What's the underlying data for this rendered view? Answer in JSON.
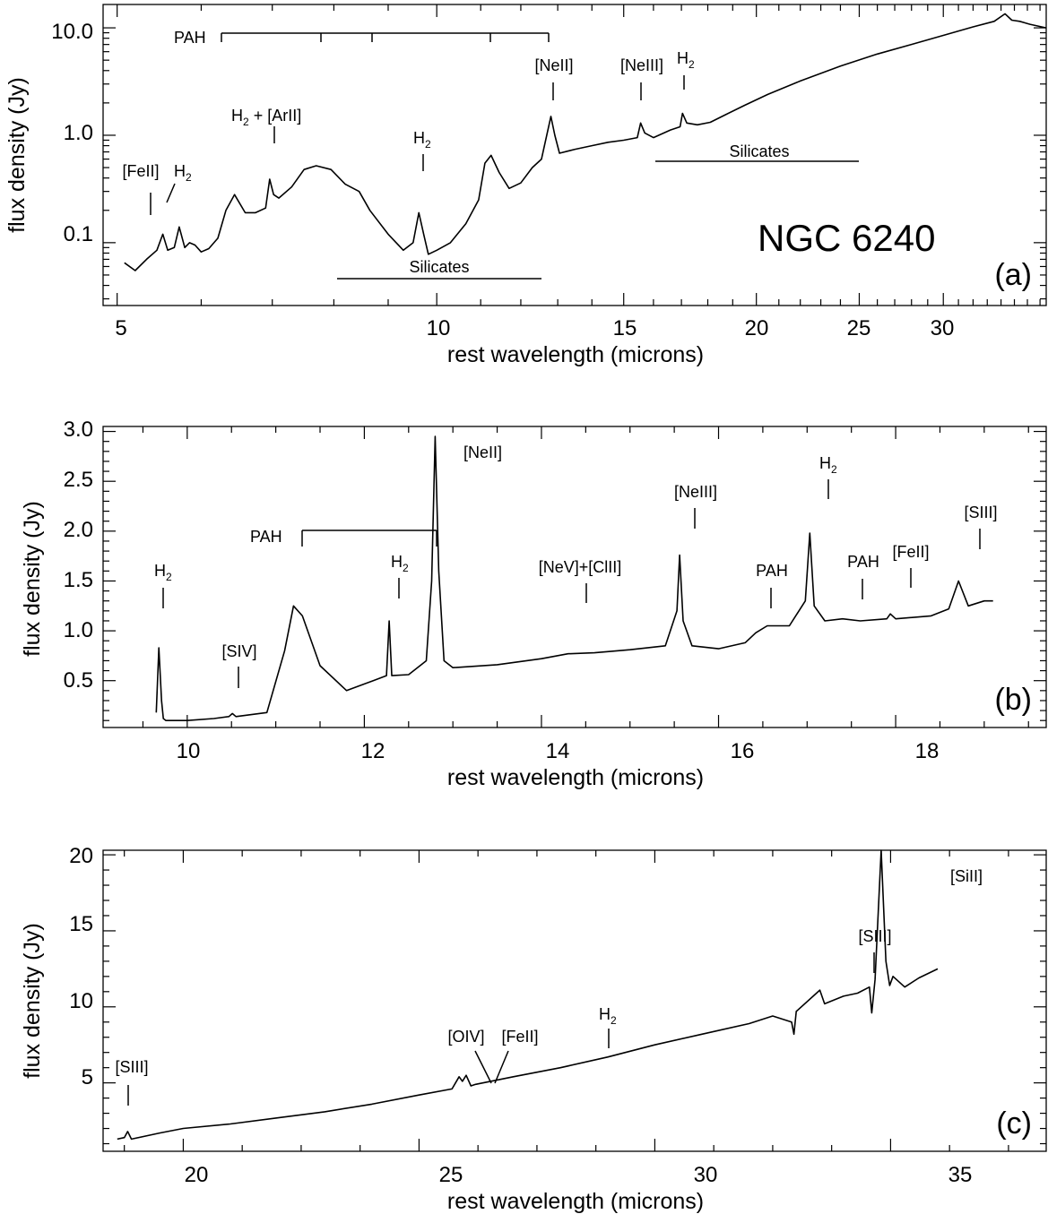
{
  "chart_data": [
    {
      "type": "line",
      "panel_label": "(a)",
      "object_label": "NGC 6240",
      "xlabel": "rest wavelength (microns)",
      "ylabel": "flux density (Jy)",
      "xscale": "log",
      "yscale": "log",
      "xlim": [
        4.85,
        37.5
      ],
      "ylim": [
        0.026,
        16.5
      ],
      "xticks": [
        5,
        10,
        15,
        20,
        25,
        30
      ],
      "xtick_labels": [
        "5",
        "10",
        "15",
        "20",
        "25",
        "30"
      ],
      "yticks": [
        0.1,
        1.0,
        10.0
      ],
      "ytick_labels": [
        "0.1",
        "1.0",
        "10.0"
      ],
      "series": [
        {
          "x": [
            5.08,
            5.2,
            5.33,
            5.45,
            5.52,
            5.58,
            5.66,
            5.72,
            5.79,
            5.85,
            5.92,
            6.0,
            6.1,
            6.22,
            6.33,
            6.45,
            6.6,
            6.75,
            6.9,
            6.96,
            7.02,
            7.1,
            7.3,
            7.5,
            7.7,
            7.95,
            8.2,
            8.45,
            8.65,
            9.0,
            9.3,
            9.5,
            9.62,
            9.72,
            9.82,
            10.0,
            10.3,
            10.65,
            10.95,
            11.1,
            11.25,
            11.45,
            11.7,
            12.0,
            12.3,
            12.55,
            12.81,
            12.92,
            13.05,
            13.5,
            14.0,
            14.5,
            15.0,
            15.45,
            15.56,
            15.7,
            16.0,
            16.6,
            16.95,
            17.04,
            17.2,
            17.6,
            18.1,
            18.7,
            19.5,
            20.5,
            22.0,
            24.0,
            26.0,
            28.0,
            30.0,
            32.0,
            33.5,
            34.3,
            34.8,
            35.4,
            36.2,
            37.5
          ],
          "y": [
            0.065,
            0.055,
            0.07,
            0.085,
            0.12,
            0.085,
            0.09,
            0.14,
            0.09,
            0.1,
            0.095,
            0.082,
            0.088,
            0.11,
            0.2,
            0.28,
            0.19,
            0.19,
            0.21,
            0.39,
            0.28,
            0.26,
            0.33,
            0.48,
            0.52,
            0.48,
            0.35,
            0.3,
            0.2,
            0.12,
            0.085,
            0.1,
            0.19,
            0.12,
            0.078,
            0.085,
            0.1,
            0.15,
            0.25,
            0.55,
            0.65,
            0.45,
            0.32,
            0.36,
            0.5,
            0.6,
            1.5,
            1.0,
            0.68,
            0.74,
            0.8,
            0.86,
            0.9,
            0.95,
            1.3,
            1.05,
            0.95,
            1.12,
            1.2,
            1.6,
            1.3,
            1.25,
            1.32,
            1.55,
            1.9,
            2.4,
            3.2,
            4.4,
            5.7,
            7.0,
            8.5,
            10.2,
            11.5,
            13.5,
            11.8,
            11.5,
            10.8,
            10.0
          ]
        }
      ],
      "annotations": [
        "[FeII]",
        "H₂",
        "H₂ + [ArII]",
        "PAH",
        "H₂",
        "[NeII]",
        "[NeIII]",
        "H₂",
        "Silicates",
        "Silicates"
      ]
    },
    {
      "type": "line",
      "panel_label": "(b)",
      "xlabel": "rest wavelength (microns)",
      "ylabel": "flux density (Jy)",
      "xlim": [
        9.05,
        19.7
      ],
      "ylim": [
        0.03,
        3.05
      ],
      "xticks": [
        10,
        12,
        14,
        16,
        18
      ],
      "xtick_labels": [
        "10",
        "12",
        "14",
        "16",
        "18"
      ],
      "yticks": [
        0.5,
        1.0,
        1.5,
        2.0,
        2.5,
        3.0
      ],
      "ytick_labels": [
        "0.5",
        "1.0",
        "1.5",
        "2.0",
        "2.5",
        "3.0"
      ],
      "series": [
        {
          "x": [
            9.65,
            9.68,
            9.71,
            9.73,
            9.76,
            10.0,
            10.3,
            10.47,
            10.51,
            10.55,
            10.9,
            11.1,
            11.2,
            11.3,
            11.5,
            11.8,
            12.1,
            12.25,
            12.28,
            12.31,
            12.5,
            12.7,
            12.76,
            12.8,
            12.84,
            12.9,
            13.0,
            13.5,
            14.0,
            14.3,
            14.6,
            15.0,
            15.4,
            15.53,
            15.56,
            15.6,
            15.7,
            16.0,
            16.3,
            16.42,
            16.55,
            16.8,
            16.98,
            17.03,
            17.08,
            17.2,
            17.4,
            17.6,
            17.9,
            17.94,
            18.0,
            18.4,
            18.6,
            18.71,
            18.82,
            19.0,
            19.1
          ],
          "y": [
            0.18,
            0.83,
            0.3,
            0.12,
            0.1,
            0.1,
            0.12,
            0.14,
            0.17,
            0.14,
            0.18,
            0.8,
            1.25,
            1.15,
            0.65,
            0.4,
            0.5,
            0.55,
            1.1,
            0.55,
            0.56,
            0.7,
            1.5,
            2.95,
            1.6,
            0.7,
            0.63,
            0.66,
            0.72,
            0.77,
            0.78,
            0.81,
            0.85,
            1.2,
            1.76,
            1.1,
            0.85,
            0.82,
            0.88,
            0.98,
            1.05,
            1.05,
            1.3,
            1.98,
            1.25,
            1.1,
            1.12,
            1.1,
            1.12,
            1.17,
            1.12,
            1.15,
            1.22,
            1.5,
            1.25,
            1.3,
            1.3
          ]
        }
      ],
      "annotations": [
        "H₂",
        "[SIV]",
        "PAH",
        "H₂",
        "[NeII]",
        "[NeV]+[ClII]",
        "[NeIII]",
        "PAH",
        "H₂",
        "PAH",
        "[FeII]",
        "[SIII]"
      ]
    },
    {
      "type": "line",
      "panel_label": "(c)",
      "xlabel": "rest wavelength (microns)",
      "ylabel": "flux density (Jy)",
      "xlim": [
        18.3,
        38.3
      ],
      "ylim": [
        0.5,
        20.3
      ],
      "xticks": [
        20,
        25,
        30,
        35
      ],
      "xtick_labels": [
        "20",
        "25",
        "30",
        "35"
      ],
      "yticks": [
        5,
        10,
        15,
        20
      ],
      "ytick_labels": [
        "5",
        "10",
        "15",
        "20"
      ],
      "series": [
        {
          "x": [
            18.6,
            18.75,
            18.82,
            18.9,
            19.5,
            20.0,
            21.0,
            22.0,
            23.0,
            24.0,
            25.0,
            25.7,
            25.85,
            25.92,
            26.0,
            26.1,
            26.2,
            27.0,
            28.0,
            29.0,
            30.0,
            31.0,
            32.0,
            32.5,
            32.9,
            32.95,
            33.0,
            33.5,
            33.6,
            34.0,
            34.3,
            34.55,
            34.6,
            34.67,
            34.8,
            34.9,
            34.98,
            35.05,
            35.3,
            35.6,
            36.0
          ],
          "y": [
            1.3,
            1.4,
            1.8,
            1.3,
            1.7,
            2.0,
            2.3,
            2.7,
            3.1,
            3.6,
            4.2,
            4.6,
            5.4,
            5.1,
            5.5,
            4.8,
            4.9,
            5.4,
            6.0,
            6.7,
            7.5,
            8.2,
            8.9,
            9.4,
            9.0,
            8.2,
            9.7,
            11.1,
            10.2,
            10.7,
            10.9,
            11.3,
            9.6,
            11.8,
            20.3,
            13.0,
            11.4,
            12.0,
            11.3,
            11.9,
            12.5
          ]
        }
      ],
      "annotations": [
        "[SIII]",
        "[OIV]",
        "[FeII]",
        "H₂",
        "[SIII]",
        "[SiII]"
      ]
    }
  ]
}
